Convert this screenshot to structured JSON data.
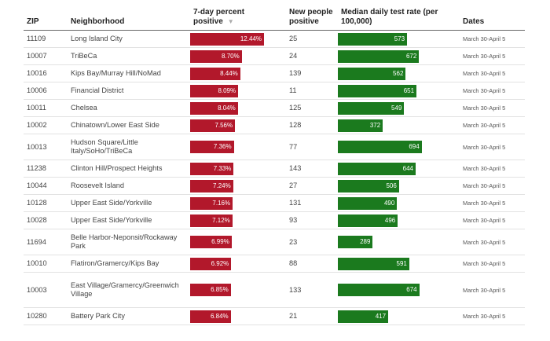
{
  "headers": {
    "zip": "ZIP",
    "neighborhood": "Neighborhood",
    "pct": "7-day percent positive",
    "sort_glyph": "▼",
    "new_positive": "New people positive",
    "rate": "Median daily test rate (per 100,000)",
    "dates": "Dates"
  },
  "scales": {
    "pct_max": 12.44,
    "rate_max": 800
  },
  "colors": {
    "pct_bar": "#b2182b",
    "rate_bar": "#1b7a1e"
  },
  "rows": [
    {
      "zip": "11109",
      "neighborhood": "Long Island City",
      "pct_label": "12.44%",
      "pct": 12.44,
      "new_positive": "25",
      "rate_label": "573",
      "rate": 573,
      "dates": "March 30-April 5",
      "size": "r1"
    },
    {
      "zip": "10007",
      "neighborhood": "TriBeCa",
      "pct_label": "8.70%",
      "pct": 8.7,
      "new_positive": "24",
      "rate_label": "672",
      "rate": 672,
      "dates": "March 30-April 5",
      "size": "r1"
    },
    {
      "zip": "10016",
      "neighborhood": "Kips Bay/Murray Hill/NoMad",
      "pct_label": "8.44%",
      "pct": 8.44,
      "new_positive": "139",
      "rate_label": "562",
      "rate": 562,
      "dates": "March 30-April 5",
      "size": "r1"
    },
    {
      "zip": "10006",
      "neighborhood": "Financial District",
      "pct_label": "8.09%",
      "pct": 8.09,
      "new_positive": "11",
      "rate_label": "651",
      "rate": 651,
      "dates": "March 30-April 5",
      "size": "r1"
    },
    {
      "zip": "10011",
      "neighborhood": "Chelsea",
      "pct_label": "8.04%",
      "pct": 8.04,
      "new_positive": "125",
      "rate_label": "549",
      "rate": 549,
      "dates": "March 30-April 5",
      "size": "r1"
    },
    {
      "zip": "10002",
      "neighborhood": "Chinatown/Lower East Side",
      "pct_label": "7.56%",
      "pct": 7.56,
      "new_positive": "128",
      "rate_label": "372",
      "rate": 372,
      "dates": "March 30-April 5",
      "size": "r1"
    },
    {
      "zip": "10013",
      "neighborhood": "Hudson Square/Little Italy/SoHo/TriBeCa",
      "pct_label": "7.36%",
      "pct": 7.36,
      "new_positive": "77",
      "rate_label": "694",
      "rate": 694,
      "dates": "March 30-April 5",
      "size": "r2"
    },
    {
      "zip": "11238",
      "neighborhood": "Clinton Hill/Prospect Heights",
      "pct_label": "7.33%",
      "pct": 7.33,
      "new_positive": "143",
      "rate_label": "644",
      "rate": 644,
      "dates": "March 30-April 5",
      "size": "r1"
    },
    {
      "zip": "10044",
      "neighborhood": "Roosevelt Island",
      "pct_label": "7.24%",
      "pct": 7.24,
      "new_positive": "27",
      "rate_label": "506",
      "rate": 506,
      "dates": "March 30-April 5",
      "size": "r1"
    },
    {
      "zip": "10128",
      "neighborhood": "Upper East Side/Yorkville",
      "pct_label": "7.16%",
      "pct": 7.16,
      "new_positive": "131",
      "rate_label": "490",
      "rate": 490,
      "dates": "March 30-April 5",
      "size": "r1"
    },
    {
      "zip": "10028",
      "neighborhood": "Upper East Side/Yorkville",
      "pct_label": "7.12%",
      "pct": 7.12,
      "new_positive": "93",
      "rate_label": "496",
      "rate": 496,
      "dates": "March 30-April 5",
      "size": "r1"
    },
    {
      "zip": "11694",
      "neighborhood": "Belle Harbor-Neponsit/Rockaway Park",
      "pct_label": "6.99%",
      "pct": 6.99,
      "new_positive": "23",
      "rate_label": "289",
      "rate": 289,
      "dates": "March 30-April 5",
      "size": "r2"
    },
    {
      "zip": "10010",
      "neighborhood": "Flatiron/Gramercy/Kips Bay",
      "pct_label": "6.92%",
      "pct": 6.92,
      "new_positive": "88",
      "rate_label": "591",
      "rate": 591,
      "dates": "March 30-April 5",
      "size": "r1"
    },
    {
      "zip": "10003",
      "neighborhood": "East Village/Gramercy/Greenwich Village",
      "pct_label": "6.85%",
      "pct": 6.85,
      "new_positive": "133",
      "rate_label": "674",
      "rate": 674,
      "dates": "March 30-April 5",
      "size": "r3"
    },
    {
      "zip": "10280",
      "neighborhood": "Battery Park City",
      "pct_label": "6.84%",
      "pct": 6.84,
      "new_positive": "21",
      "rate_label": "417",
      "rate": 417,
      "dates": "March 30-April 5",
      "size": "r1"
    }
  ]
}
